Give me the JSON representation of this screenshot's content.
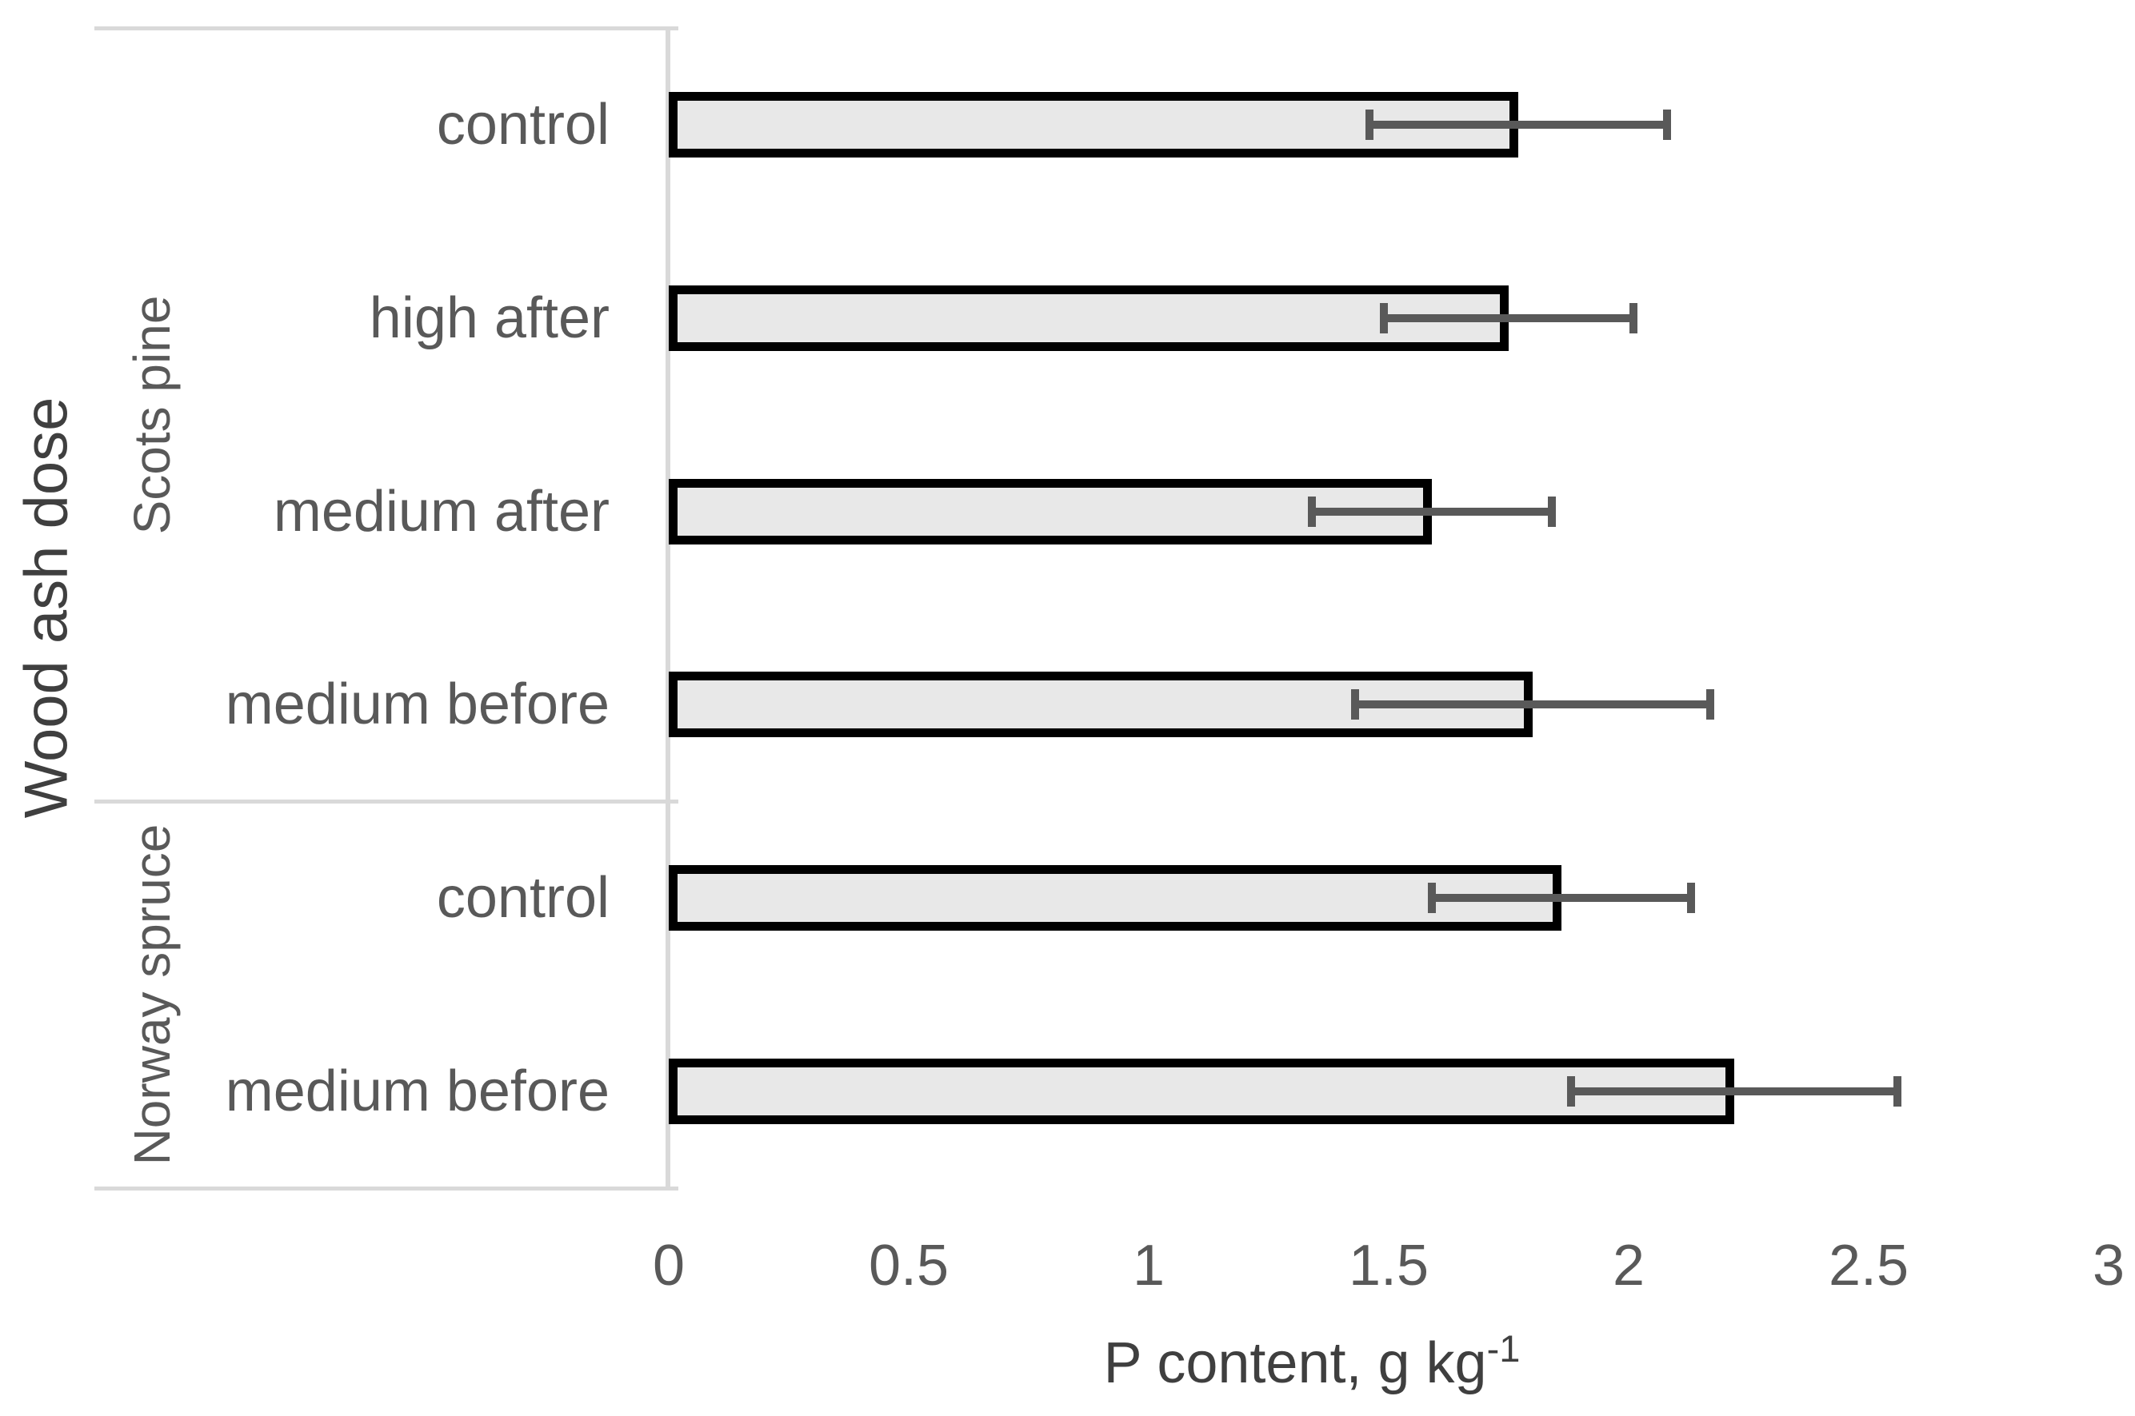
{
  "chart_data": {
    "type": "bar",
    "orientation": "horizontal",
    "title": "",
    "xlabel": "P content, g kg⁻¹",
    "xlabel_main": "P content, g kg",
    "xlabel_sup": "-1",
    "ylabel": "Wood ash dose",
    "xlim": [
      0,
      3
    ],
    "xtick_labels": [
      "0",
      "0.5",
      "1",
      "1.5",
      "2",
      "2.5",
      "3"
    ],
    "xtick_values": [
      0,
      0.5,
      1,
      1.5,
      2,
      2.5,
      3
    ],
    "grid": false,
    "legend": false,
    "groups": [
      {
        "name": "Scots pine",
        "bars": [
          {
            "label": "control",
            "value": 1.77,
            "error": 0.31
          },
          {
            "label": "high after",
            "value": 1.75,
            "error": 0.26
          },
          {
            "label": "medium after",
            "value": 1.59,
            "error": 0.25
          },
          {
            "label": "medium before",
            "value": 1.8,
            "error": 0.37
          }
        ]
      },
      {
        "name": "Norway spruce",
        "bars": [
          {
            "label": "control",
            "value": 1.86,
            "error": 0.27
          },
          {
            "label": "medium before",
            "value": 2.22,
            "error": 0.34
          }
        ]
      }
    ],
    "colors": {
      "bar_fill": "#e8e8e8",
      "bar_border": "#000000",
      "error_bar": "#595959",
      "axis_line": "#d9d9d9",
      "tick_label": "#595959",
      "axis_title": "#3f3f3f"
    }
  }
}
